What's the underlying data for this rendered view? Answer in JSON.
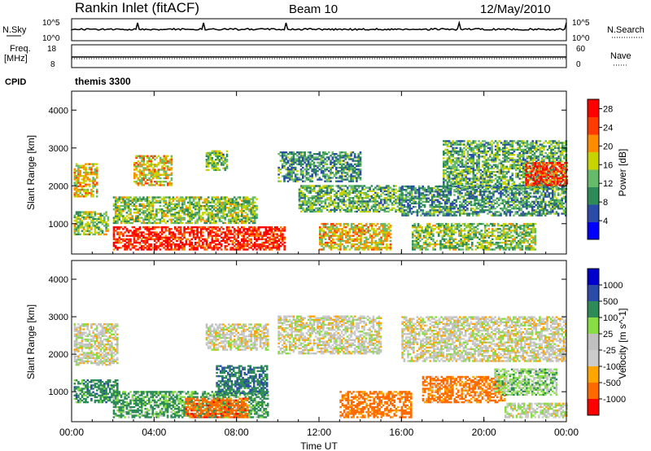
{
  "header": {
    "station": "Rankin Inlet (fitACF)",
    "beam": "Beam 10",
    "date": "12/May/2010"
  },
  "panels": {
    "nsky_label": "N.Sky",
    "nsearch_label": "N.Search",
    "nsky_ticks": [
      "10^5",
      "10^0"
    ],
    "nsearch_ticks": [
      "10^5",
      "10^0"
    ],
    "freq_label_top": "Freq.",
    "freq_label_unit": "[MHz]",
    "freq_ticks": [
      "18",
      "8"
    ],
    "nave_label": "Nave",
    "nave_ticks": [
      "60",
      "0"
    ],
    "cpid_label": "CPID",
    "cpid_value": "themis 3300"
  },
  "colors": {
    "power": [
      "#0000ff",
      "#2a4ca8",
      "#2e8b57",
      "#66bb6a",
      "#c8d400",
      "#ff8c00",
      "#ff3b00",
      "#ff0000"
    ],
    "velocity": [
      "#ff0000",
      "#ff6a00",
      "#ffa500",
      "#cccccc",
      "#c0c0c0",
      "#88dd44",
      "#2e8b57",
      "#2a4ca8",
      "#0000cc"
    ]
  },
  "chart_data": [
    {
      "type": "heatmap",
      "title": "",
      "xlabel": "",
      "ylabel": "Slant Range [km]",
      "xlim": [
        0,
        24
      ],
      "ylim": [
        200,
        4500
      ],
      "x_ticks": [
        "00:00",
        "04:00",
        "08:00",
        "12:00",
        "16:00",
        "20:00",
        "00:00"
      ],
      "y_ticks": [
        1000,
        2000,
        3000,
        4000
      ],
      "colorbar": {
        "label": "Power [dB]",
        "ticks": [
          4,
          8,
          12,
          16,
          20,
          24,
          28
        ],
        "range": [
          0,
          30
        ]
      },
      "regions": [
        {
          "t0": 0.1,
          "t1": 1.2,
          "r0": 1700,
          "r1": 2600,
          "value": 18
        },
        {
          "t0": 0.1,
          "t1": 1.8,
          "r0": 700,
          "r1": 1300,
          "value": 14
        },
        {
          "t0": 2.0,
          "t1": 9.0,
          "r0": 1000,
          "r1": 1700,
          "value": 14
        },
        {
          "t0": 2.0,
          "t1": 10.3,
          "r0": 300,
          "r1": 900,
          "value": 27
        },
        {
          "t0": 3.0,
          "t1": 4.8,
          "r0": 2000,
          "r1": 2800,
          "value": 18
        },
        {
          "t0": 6.5,
          "t1": 7.5,
          "r0": 2400,
          "r1": 2900,
          "value": 13
        },
        {
          "t0": 10.0,
          "t1": 14.0,
          "r0": 2100,
          "r1": 2900,
          "value": 10
        },
        {
          "t0": 11.0,
          "t1": 16.0,
          "r0": 1300,
          "r1": 2000,
          "value": 12
        },
        {
          "t0": 12.0,
          "t1": 15.5,
          "r0": 300,
          "r1": 1000,
          "value": 18
        },
        {
          "t0": 16.0,
          "t1": 24.0,
          "r0": 1200,
          "r1": 2000,
          "value": 10
        },
        {
          "t0": 18.0,
          "t1": 24.0,
          "r0": 1900,
          "r1": 3200,
          "value": 12
        },
        {
          "t0": 22.0,
          "t1": 24.0,
          "r0": 2000,
          "r1": 2600,
          "value": 26
        },
        {
          "t0": 16.5,
          "t1": 22.5,
          "r0": 300,
          "r1": 1000,
          "value": 14
        }
      ]
    },
    {
      "type": "heatmap",
      "title": "",
      "xlabel": "Time UT",
      "ylabel": "Slant Range [km]",
      "xlim": [
        0,
        24
      ],
      "ylim": [
        200,
        4500
      ],
      "x_ticks": [
        "00:00",
        "04:00",
        "08:00",
        "12:00",
        "16:00",
        "20:00",
        "00:00"
      ],
      "y_ticks": [
        1000,
        2000,
        3000,
        4000
      ],
      "colorbar": {
        "label": "Velocity [m s^-1]",
        "ticks": [
          "1000",
          "500",
          "100",
          "25",
          "-25",
          "-100",
          "-500",
          "-1000"
        ]
      },
      "regions": [
        {
          "t0": 0.1,
          "t1": 2.2,
          "r0": 1700,
          "r1": 2800,
          "value": 0
        },
        {
          "t0": 0.1,
          "t1": 2.2,
          "r0": 700,
          "r1": 1300,
          "value": 300
        },
        {
          "t0": 2.0,
          "t1": 9.5,
          "r0": 300,
          "r1": 1000,
          "value": 150
        },
        {
          "t0": 5.5,
          "t1": 8.5,
          "r0": 300,
          "r1": 800,
          "value": -300
        },
        {
          "t0": 7.0,
          "t1": 9.5,
          "r0": 900,
          "r1": 1700,
          "value": 400
        },
        {
          "t0": 6.5,
          "t1": 9.5,
          "r0": 2100,
          "r1": 2800,
          "value": 0
        },
        {
          "t0": 10.0,
          "t1": 15.0,
          "r0": 2000,
          "r1": 3000,
          "value": 0
        },
        {
          "t0": 13.0,
          "t1": 16.5,
          "r0": 300,
          "r1": 1000,
          "value": -200
        },
        {
          "t0": 16.0,
          "t1": 24.0,
          "r0": 1800,
          "r1": 3000,
          "value": 0
        },
        {
          "t0": 17.0,
          "t1": 21.0,
          "r0": 700,
          "r1": 1400,
          "value": -150
        },
        {
          "t0": 20.5,
          "t1": 23.5,
          "r0": 900,
          "r1": 1600,
          "value": 60
        },
        {
          "t0": 21.0,
          "t1": 24.0,
          "r0": 300,
          "r1": 700,
          "value": 10
        }
      ]
    }
  ]
}
